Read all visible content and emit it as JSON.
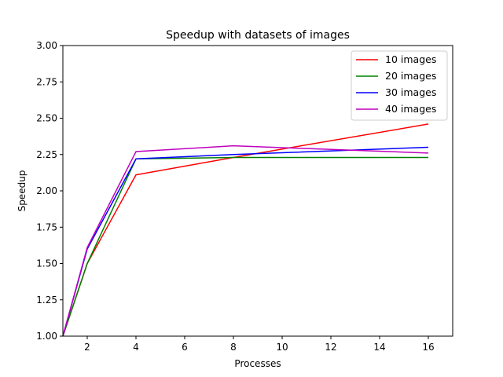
{
  "chart_data": {
    "type": "line",
    "title": "Speedup with datasets of images",
    "xlabel": "Processes",
    "ylabel": "Speedup",
    "xlim": [
      1,
      17
    ],
    "ylim": [
      1.0,
      3.0
    ],
    "xticks": [
      2,
      4,
      6,
      8,
      10,
      12,
      14,
      16
    ],
    "xtick_labels": [
      "2",
      "4",
      "6",
      "8",
      "10",
      "12",
      "14",
      "16"
    ],
    "yticks": [
      1.0,
      1.25,
      1.5,
      1.75,
      2.0,
      2.25,
      2.5,
      2.75,
      3.0
    ],
    "ytick_labels": [
      "1.00",
      "1.25",
      "1.50",
      "1.75",
      "2.00",
      "2.25",
      "2.50",
      "2.75",
      "3.00"
    ],
    "grid": false,
    "legend_position": "top-right",
    "x": [
      1,
      2,
      4,
      8,
      16
    ],
    "series": [
      {
        "name": "10 images",
        "color": "#ff0000",
        "values": [
          1.0,
          1.5,
          2.11,
          2.23,
          2.46
        ]
      },
      {
        "name": "20 images",
        "color": "#008000",
        "values": [
          1.0,
          1.5,
          2.22,
          2.23,
          2.23
        ]
      },
      {
        "name": "30 images",
        "color": "#0000ff",
        "values": [
          1.0,
          1.6,
          2.22,
          2.25,
          2.3
        ]
      },
      {
        "name": "40 images",
        "color": "#bf00bf",
        "values": [
          1.0,
          1.61,
          2.27,
          2.31,
          2.26
        ]
      }
    ]
  }
}
